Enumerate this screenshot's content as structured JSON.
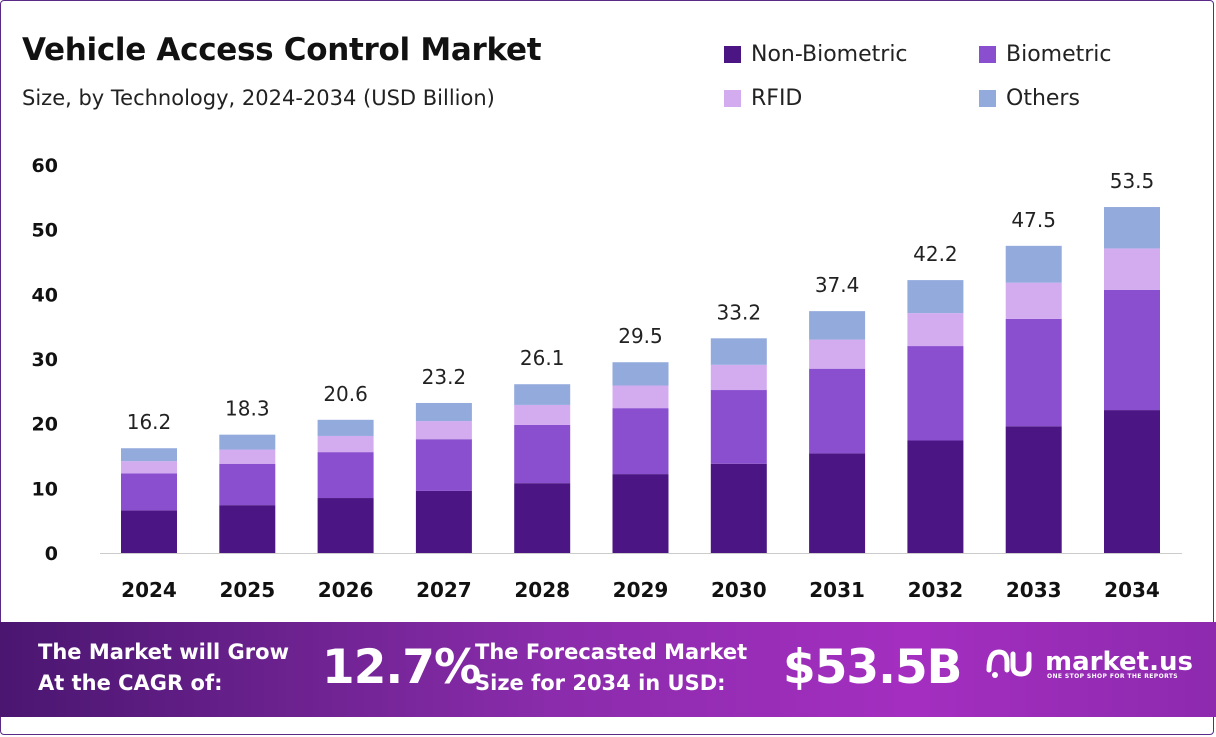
{
  "header": {
    "title": "Vehicle Access Control Market",
    "subtitle": "Size, by Technology, 2024-2034 (USD Billion)"
  },
  "legend": [
    {
      "label": "Non-Biometric",
      "color": "#4b1683"
    },
    {
      "label": "Biometric",
      "color": "#8a4fcf"
    },
    {
      "label": "RFID",
      "color": "#d3acf0"
    },
    {
      "label": "Others",
      "color": "#92aadc"
    }
  ],
  "chart_data": {
    "type": "bar",
    "stacked": true,
    "categories": [
      "2024",
      "2025",
      "2026",
      "2027",
      "2028",
      "2029",
      "2030",
      "2031",
      "2032",
      "2033",
      "2034"
    ],
    "series": [
      {
        "name": "Non-Biometric",
        "color": "#4b1683",
        "values": [
          6.6,
          7.4,
          8.5,
          9.6,
          10.8,
          12.2,
          13.8,
          15.4,
          17.4,
          19.6,
          22.1
        ]
      },
      {
        "name": "Biometric",
        "color": "#8a4fcf",
        "values": [
          5.7,
          6.4,
          7.1,
          8.0,
          9.0,
          10.2,
          11.4,
          13.1,
          14.6,
          16.6,
          18.6
        ]
      },
      {
        "name": "RFID",
        "color": "#d3acf0",
        "values": [
          1.9,
          2.2,
          2.5,
          2.8,
          3.1,
          3.5,
          3.9,
          4.5,
          5.1,
          5.6,
          6.4
        ]
      },
      {
        "name": "Others",
        "color": "#92aadc",
        "values": [
          2.0,
          2.3,
          2.5,
          2.8,
          3.2,
          3.6,
          4.1,
          4.4,
          5.1,
          5.7,
          6.4
        ]
      }
    ],
    "totals": [
      "16.2",
      "18.3",
      "20.6",
      "23.2",
      "26.1",
      "29.5",
      "33.2",
      "37.4",
      "42.2",
      "47.5",
      "53.5"
    ],
    "yticks": [
      "0",
      "10",
      "20",
      "30",
      "40",
      "50",
      "60"
    ],
    "ylim": [
      0,
      60
    ],
    "grid": false,
    "legend_position": "top-right"
  },
  "banner": {
    "cagr_label_line1": "The Market will Grow",
    "cagr_label_line2": "At the CAGR of:",
    "cagr_value": "12.7%",
    "forecast_label_line1": "The Forecasted Market",
    "forecast_label_line2": "Size for 2034 in USD:",
    "forecast_value": "$53.5B",
    "logo_name": "market.us",
    "logo_tagline": "ONE STOP SHOP FOR THE REPORTS",
    "logo_icon": "market-us-logo-icon"
  }
}
